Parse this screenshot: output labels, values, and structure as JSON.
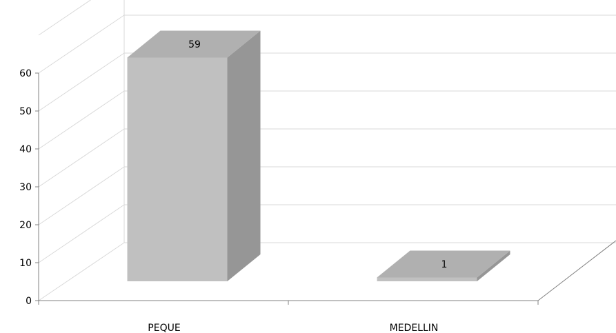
{
  "chart_data": {
    "type": "bar",
    "style": "3d-column",
    "categories": [
      "PEQUE",
      "MEDELLIN"
    ],
    "values": [
      59,
      1
    ],
    "data_labels": [
      "59",
      "1"
    ],
    "ylim": [
      0,
      60
    ],
    "y_ticks": [
      "0",
      "10",
      "20",
      "30",
      "40",
      "50",
      "60"
    ],
    "grid": true,
    "legend": "none",
    "colors": {
      "bar_front": "#c0c0c0",
      "bar_side": "#969696",
      "bar_top": "#b0b0b0",
      "gridline": "#d9d9d9",
      "axis": "#808080"
    }
  }
}
